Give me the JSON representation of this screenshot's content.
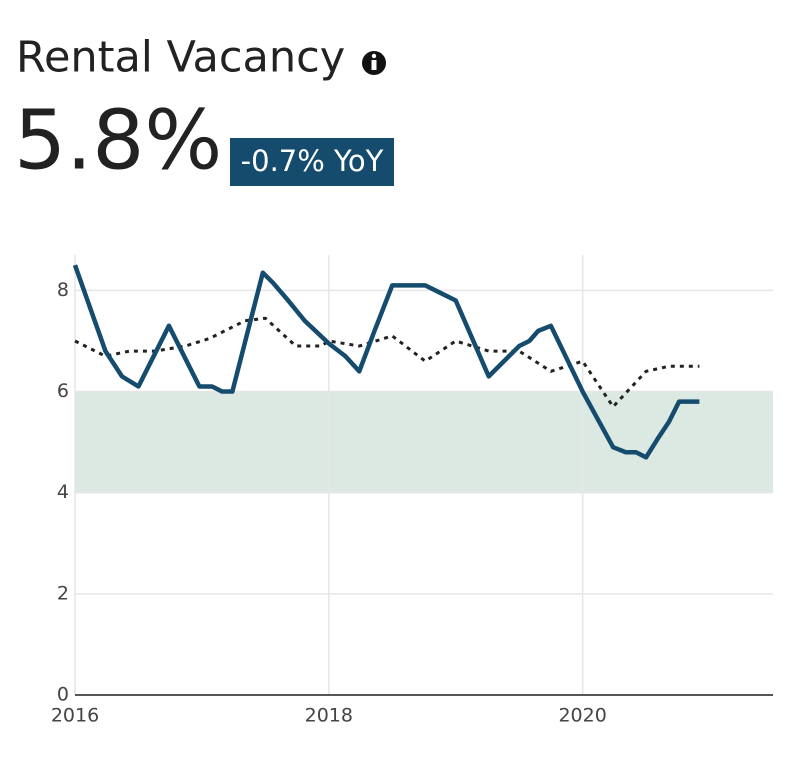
{
  "header": {
    "title": "Rental Vacancy",
    "value": "5.8%",
    "change": "-0.7% YoY"
  },
  "chart_data": {
    "type": "line",
    "xlim": [
      2016,
      2021.5
    ],
    "xticks": [
      2016,
      2018,
      2020
    ],
    "ylim": [
      0,
      8.7
    ],
    "yticks": [
      0,
      2,
      4,
      6,
      8
    ],
    "grid": true,
    "band": [
      4,
      6
    ],
    "band_color": "#dce9e3",
    "series": [
      {
        "color": "#154c6e",
        "style": "solid",
        "x": [
          2016.0,
          2016.24,
          2016.37,
          2016.5,
          2016.74,
          2016.98,
          2017.08,
          2017.16,
          2017.24,
          2017.48,
          2017.56,
          2017.68,
          2017.81,
          2018.0,
          2018.13,
          2018.24,
          2018.36,
          2018.5,
          2018.76,
          2018.88,
          2019.0,
          2019.26,
          2019.5,
          2019.58,
          2019.65,
          2019.75,
          2020.0,
          2020.24,
          2020.34,
          2020.42,
          2020.5,
          2020.6,
          2020.68,
          2020.76,
          2020.92
        ],
        "values": [
          8.5,
          6.8,
          6.3,
          6.1,
          7.3,
          6.1,
          6.1,
          6.0,
          6.0,
          8.35,
          8.15,
          7.8,
          7.4,
          6.95,
          6.7,
          6.4,
          7.2,
          8.1,
          8.1,
          7.95,
          7.8,
          6.3,
          6.9,
          7.0,
          7.2,
          7.3,
          6.0,
          4.9,
          4.8,
          4.8,
          4.7,
          5.1,
          5.4,
          5.8,
          5.8
        ]
      },
      {
        "color": "#222222",
        "style": "dotted",
        "x": [
          2016.0,
          2016.24,
          2016.43,
          2016.63,
          2016.87,
          2017.06,
          2017.34,
          2017.5,
          2017.74,
          2017.94,
          2018.0,
          2018.24,
          2018.5,
          2018.76,
          2019.0,
          2019.26,
          2019.5,
          2019.75,
          2020.0,
          2020.24,
          2020.5,
          2020.68,
          2020.92
        ],
        "values": [
          7.0,
          6.7,
          6.8,
          6.8,
          6.9,
          7.05,
          7.4,
          7.45,
          6.9,
          6.9,
          7.0,
          6.9,
          7.1,
          6.6,
          7.0,
          6.8,
          6.8,
          6.4,
          6.6,
          5.7,
          6.4,
          6.5,
          6.5
        ]
      }
    ]
  }
}
